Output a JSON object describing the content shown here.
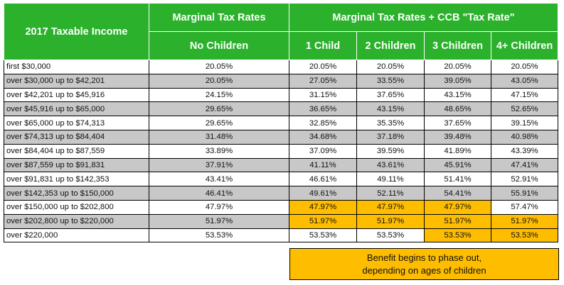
{
  "header": {
    "income_col": "2017 Taxable Income",
    "group_left": "Marginal Tax Rates",
    "group_right": "Marginal Tax Rates + CCB \"Tax Rate\"",
    "sub_no_children": "No Children",
    "sub_1": "1 Child",
    "sub_2": "2 Children",
    "sub_3": "3 Children",
    "sub_4": "4+ Children"
  },
  "rows": [
    {
      "income": "first $30,000",
      "none": "20.05%",
      "c1": "20.05%",
      "c2": "20.05%",
      "c3": "20.05%",
      "c4": "20.05%"
    },
    {
      "income": "over $30,000 up to $42,201",
      "none": "20.05%",
      "c1": "27.05%",
      "c2": "33.55%",
      "c3": "39.05%",
      "c4": "43.05%"
    },
    {
      "income": "over $42,201 up to $45,916",
      "none": "24.15%",
      "c1": "31.15%",
      "c2": "37.65%",
      "c3": "43.15%",
      "c4": "47.15%"
    },
    {
      "income": "over $45,916 up to $65,000",
      "none": "29.65%",
      "c1": "36.65%",
      "c2": "43.15%",
      "c3": "48.65%",
      "c4": "52.65%"
    },
    {
      "income": "over $65,000 up to $74,313",
      "none": "29.65%",
      "c1": "32.85%",
      "c2": "35.35%",
      "c3": "37.65%",
      "c4": "39.15%"
    },
    {
      "income": "over $74,313 up to $84,404",
      "none": "31.48%",
      "c1": "34.68%",
      "c2": "37.18%",
      "c3": "39.48%",
      "c4": "40.98%"
    },
    {
      "income": "over $84,404 up to $87,559",
      "none": "33.89%",
      "c1": "37.09%",
      "c2": "39.59%",
      "c3": "41.89%",
      "c4": "43.39%"
    },
    {
      "income": "over $87,559 up to $91,831",
      "none": "37.91%",
      "c1": "41.11%",
      "c2": "43.61%",
      "c3": "45.91%",
      "c4": "47.41%"
    },
    {
      "income": "over $91,831 up to $142,353",
      "none": "43.41%",
      "c1": "46.61%",
      "c2": "49.11%",
      "c3": "51.41%",
      "c4": "52.91%"
    },
    {
      "income": "over $142,353 up to $150,000",
      "none": "46.41%",
      "c1": "49.61%",
      "c2": "52.11%",
      "c3": "54.41%",
      "c4": "55.91%"
    },
    {
      "income": "over $150,000 up to $202,800",
      "none": "47.97%",
      "c1": "47.97%",
      "c2": "47.97%",
      "c3": "47.97%",
      "c4": "57.47%"
    },
    {
      "income": "over $202,800 up to $220,000",
      "none": "51.97%",
      "c1": "51.97%",
      "c2": "51.97%",
      "c3": "51.97%",
      "c4": "51.97%"
    },
    {
      "income": "over $220,000",
      "none": "53.53%",
      "c1": "53.53%",
      "c2": "53.53%",
      "c3": "53.53%",
      "c4": "53.53%"
    }
  ],
  "legend": {
    "line1": "Benefit begins to phase out,",
    "line2": "depending on ages of children"
  },
  "colors": {
    "header_green": "#2bb12b",
    "row_shade": "#c8c8c8",
    "phase_out_highlight": "#ffbd00"
  }
}
